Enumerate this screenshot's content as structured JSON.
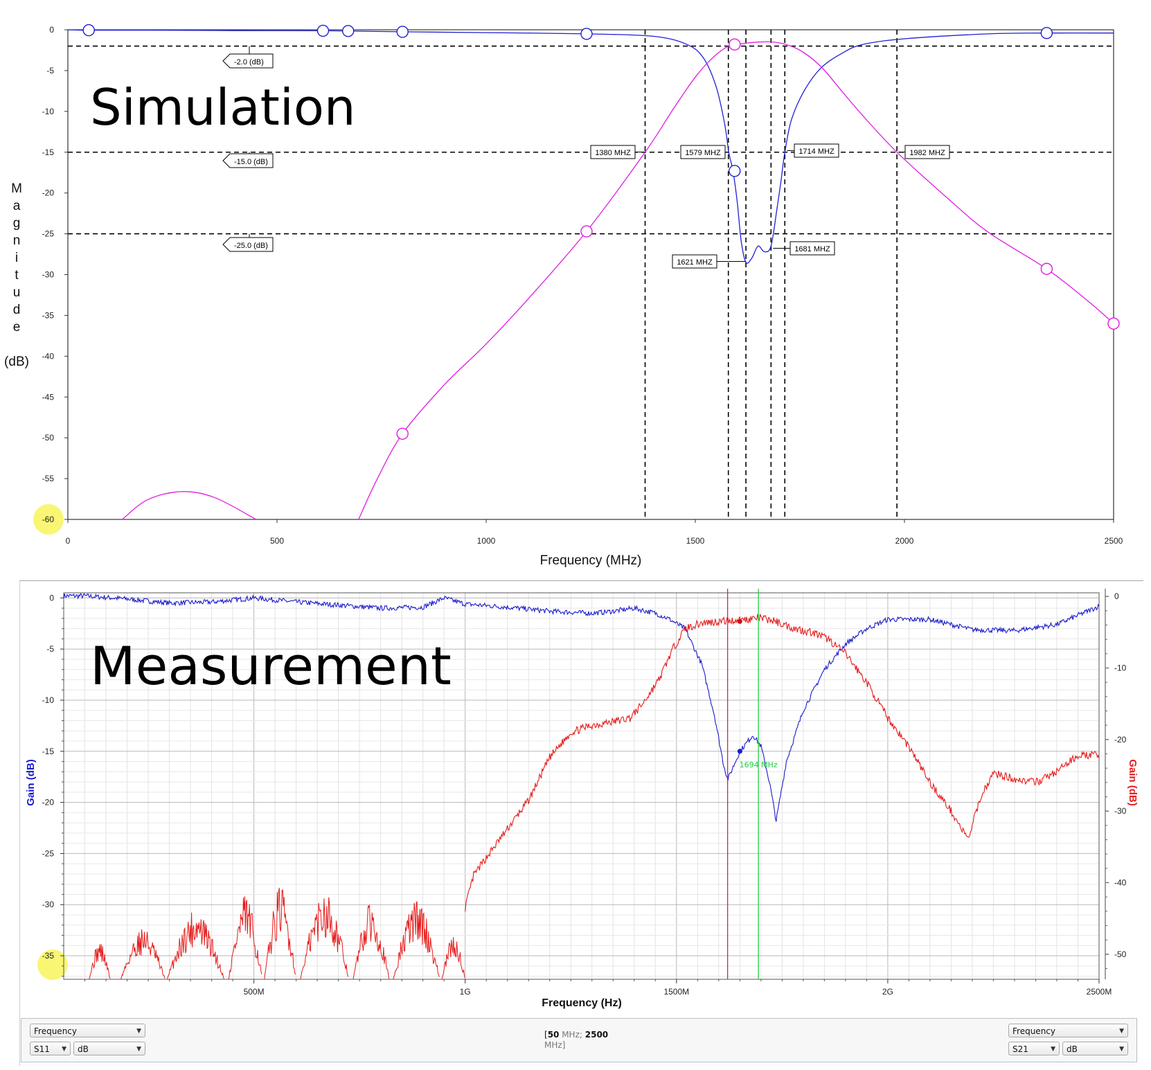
{
  "chart_data": [
    {
      "type": "line",
      "label": "Simulation",
      "xlabel": "Frequency (MHz)",
      "ylabel": "Magnitude (dB)",
      "xlim": [
        0,
        2500
      ],
      "ylim": [
        -60,
        0
      ],
      "xticks": [
        "0",
        "500",
        "1000",
        "1500",
        "2000",
        "2500"
      ],
      "yticks": [
        "0",
        "-5",
        "-10",
        "-15",
        "-20",
        "-25",
        "-30",
        "-35",
        "-40",
        "-45",
        "-50",
        "-55",
        "-60"
      ],
      "grid": false,
      "series": [
        {
          "color": "#1f1fd6",
          "x": [
            0,
            50,
            200,
            400,
            610,
            670,
            800,
            1000,
            1240,
            1400,
            1480,
            1520,
            1550,
            1570,
            1580,
            1590,
            1600,
            1610,
            1621,
            1635,
            1650,
            1665,
            1681,
            1695,
            1705,
            1714,
            1730,
            1760,
            1800,
            1850,
            1900,
            2000,
            2200,
            2340,
            2500
          ],
          "y": [
            0,
            -0.05,
            -0.05,
            -0.1,
            -0.12,
            -0.15,
            -0.25,
            -0.35,
            -0.5,
            -0.8,
            -1.8,
            -3.5,
            -7,
            -11.5,
            -15,
            -17.3,
            -21,
            -26,
            -28.5,
            -28,
            -26.5,
            -27.2,
            -26.5,
            -22,
            -18.5,
            -15,
            -11,
            -7.5,
            -4.7,
            -2.9,
            -1.8,
            -1.1,
            -0.5,
            -0.4,
            -0.4
          ],
          "markers": [
            [
              50,
              -0.05
            ],
            [
              610,
              -0.12
            ],
            [
              670,
              -0.15
            ],
            [
              800,
              -0.25
            ],
            [
              1240,
              -0.5
            ],
            [
              1594,
              -17.3
            ],
            [
              2340,
              -0.4
            ]
          ]
        },
        {
          "color": "#e01ce0",
          "x": [
            130,
            190,
            270,
            350,
            450
          ],
          "y": [
            -60,
            -57.6,
            -56.6,
            -57.3,
            -60
          ],
          "markers": []
        },
        {
          "color": "#e01ce0",
          "x": [
            695,
            740,
            800,
            900,
            1000,
            1100,
            1240,
            1380,
            1450,
            1500,
            1540,
            1579,
            1600,
            1650,
            1700,
            1750,
            1800,
            1850,
            1900,
            1982,
            2100,
            2200,
            2340,
            2440,
            2500
          ],
          "y": [
            -60,
            -55,
            -49.5,
            -43.5,
            -38.5,
            -33,
            -24.7,
            -15,
            -9.5,
            -5.8,
            -3.5,
            -2,
            -1.8,
            -1.5,
            -1.6,
            -2.5,
            -4.5,
            -7.5,
            -10.5,
            -15,
            -20.5,
            -24.8,
            -29.3,
            -33.3,
            -36
          ],
          "markers": [
            [
              800,
              -49.5
            ],
            [
              1240,
              -24.7
            ],
            [
              1594,
              -1.8
            ],
            [
              2340,
              -29.3
            ],
            [
              2500,
              -36
            ]
          ]
        }
      ],
      "hlines": [
        {
          "y": -2,
          "label": "-2.0  (dB)"
        },
        {
          "y": -15,
          "label": "-15.0  (dB)"
        },
        {
          "y": -25,
          "label": "-25.0  (dB)"
        }
      ],
      "vlines": [
        {
          "x": 1380,
          "label": "1380 MHZ"
        },
        {
          "x": 1579,
          "label": "1579 MHZ"
        },
        {
          "x": 1621,
          "label": "1621 MHZ"
        },
        {
          "x": 1681,
          "label": "1681 MHZ"
        },
        {
          "x": 1714,
          "label": "1714 MHZ"
        },
        {
          "x": 1982,
          "label": "1982 MHZ"
        }
      ]
    },
    {
      "type": "line",
      "label": "Measurement",
      "xlabel": "Frequency (Hz)",
      "ylabel": "Gain (dB)",
      "ylabel_right": "Gain (dB)",
      "xlim": [
        50,
        2500
      ],
      "ylim": [
        -37.3,
        0.5
      ],
      "ylim_right": [
        -53.5,
        0.5
      ],
      "xticks": [
        "500M",
        "1G",
        "1500M",
        "2G",
        "2500M"
      ],
      "yticks": [
        "0",
        "-5",
        "-10",
        "-15",
        "-20",
        "-25",
        "-30",
        "-35"
      ],
      "yticks_right": [
        "0",
        "-10",
        "-20",
        "-30",
        "-40",
        "-50"
      ],
      "grid": true,
      "series": [
        {
          "name": "S11",
          "axis": "left",
          "color": "#1a1acc",
          "x": [
            50,
            100,
            200,
            300,
            400,
            500,
            600,
            700,
            800,
            900,
            950,
            1000,
            1100,
            1200,
            1300,
            1350,
            1400,
            1450,
            1480,
            1520,
            1560,
            1590,
            1610,
            1621,
            1650,
            1681,
            1700,
            1720,
            1736,
            1760,
            1800,
            1850,
            1900,
            1950,
            2000,
            2100,
            2200,
            2300,
            2400,
            2500
          ],
          "y": [
            0.2,
            0.2,
            -0.1,
            -0.5,
            -0.4,
            0,
            -0.4,
            -0.7,
            -1,
            -0.9,
            0,
            -0.6,
            -0.9,
            -1.3,
            -1.5,
            -1.3,
            -1,
            -1.5,
            -2,
            -3,
            -6.5,
            -11.5,
            -16,
            -17.8,
            -15,
            -13.4,
            -14.5,
            -18,
            -21.8,
            -16,
            -11,
            -7,
            -4.5,
            -3,
            -2.1,
            -2.1,
            -3.1,
            -3.2,
            -2.6,
            -0.8
          ],
          "noise": 0.25
        },
        {
          "name": "S21",
          "axis": "right",
          "color": "#e51a1a",
          "x": [
            1000,
            1020,
            1050,
            1100,
            1150,
            1200,
            1250,
            1300,
            1350,
            1390,
            1420,
            1460,
            1490,
            1520,
            1560,
            1600,
            1650,
            1694,
            1730,
            1780,
            1820,
            1860,
            1900,
            1950,
            2000,
            2050,
            2100,
            2150,
            2190,
            2220,
            2250,
            2300,
            2350,
            2400,
            2450,
            2500
          ],
          "y": [
            -43.5,
            -39,
            -36.5,
            -32.5,
            -28.5,
            -22.5,
            -19,
            -18,
            -17.5,
            -17,
            -15,
            -11.5,
            -7.5,
            -4.5,
            -3.7,
            -3.5,
            -3.3,
            -3,
            -3.4,
            -4.5,
            -5,
            -6,
            -8,
            -12,
            -17,
            -21,
            -26,
            -30,
            -34,
            -28,
            -24.7,
            -25.5,
            -26,
            -24.5,
            -22.2,
            -22.2
          ],
          "noise": 0.55
        }
      ],
      "noise_band": {
        "series": "S21",
        "x_range": [
          50,
          1000
        ],
        "segments": [
          {
            "x": [
              110,
              160
            ],
            "y": [
              -48,
              -53.5
            ]
          },
          {
            "x": [
              185,
              290
            ],
            "y": [
              -46,
              -53.5
            ]
          },
          {
            "x": [
              295,
              430
            ],
            "y": [
              -43.5,
              -53.5
            ]
          },
          {
            "x": [
              440,
              520
            ],
            "y": [
              -41.5,
              -53.5
            ]
          },
          {
            "x": [
              525,
              600
            ],
            "y": [
              -40.2,
              -53.5
            ]
          },
          {
            "x": [
              610,
              725
            ],
            "y": [
              -40.7,
              -53.5
            ]
          },
          {
            "x": [
              735,
              820
            ],
            "y": [
              -42.5,
              -53.5
            ]
          },
          {
            "x": [
              830,
              940
            ],
            "y": [
              -42,
              -53.5
            ]
          },
          {
            "x": [
              945,
              1000
            ],
            "y": [
              -47,
              -53.5
            ]
          }
        ]
      },
      "markers": [
        {
          "x": 1621,
          "color": "#cc2266",
          "label": ""
        },
        {
          "x": 1694,
          "color": "#22cc44",
          "label": "1694 MHz"
        }
      ],
      "marker_points": [
        {
          "x": 1650,
          "y": -15.0,
          "axis": "left",
          "color": "#1a1acc"
        },
        {
          "x": 1650,
          "y": -3.5,
          "axis": "right",
          "color": "#cc1111"
        }
      ]
    }
  ],
  "controls": {
    "left_x_select": "Frequency",
    "left_param_select": "S11",
    "left_unit_select": "dB",
    "right_x_select": "Frequency",
    "right_param_select": "S21",
    "right_unit_select": "dB",
    "range_prefix": "[",
    "range_start_value": "50",
    "range_start_unit": " MHz; ",
    "range_end_value": "2500",
    "range_end_unit": "MHz]"
  },
  "colors": {
    "sim_s11": "#1f1fd6",
    "sim_s21": "#e01ce0",
    "meas_s11": "#1a1acc",
    "meas_s21": "#e51a1a",
    "left_axis_title": "#1a1acc",
    "right_axis_title": "#e51a1a",
    "highlight": "#f5f542"
  }
}
